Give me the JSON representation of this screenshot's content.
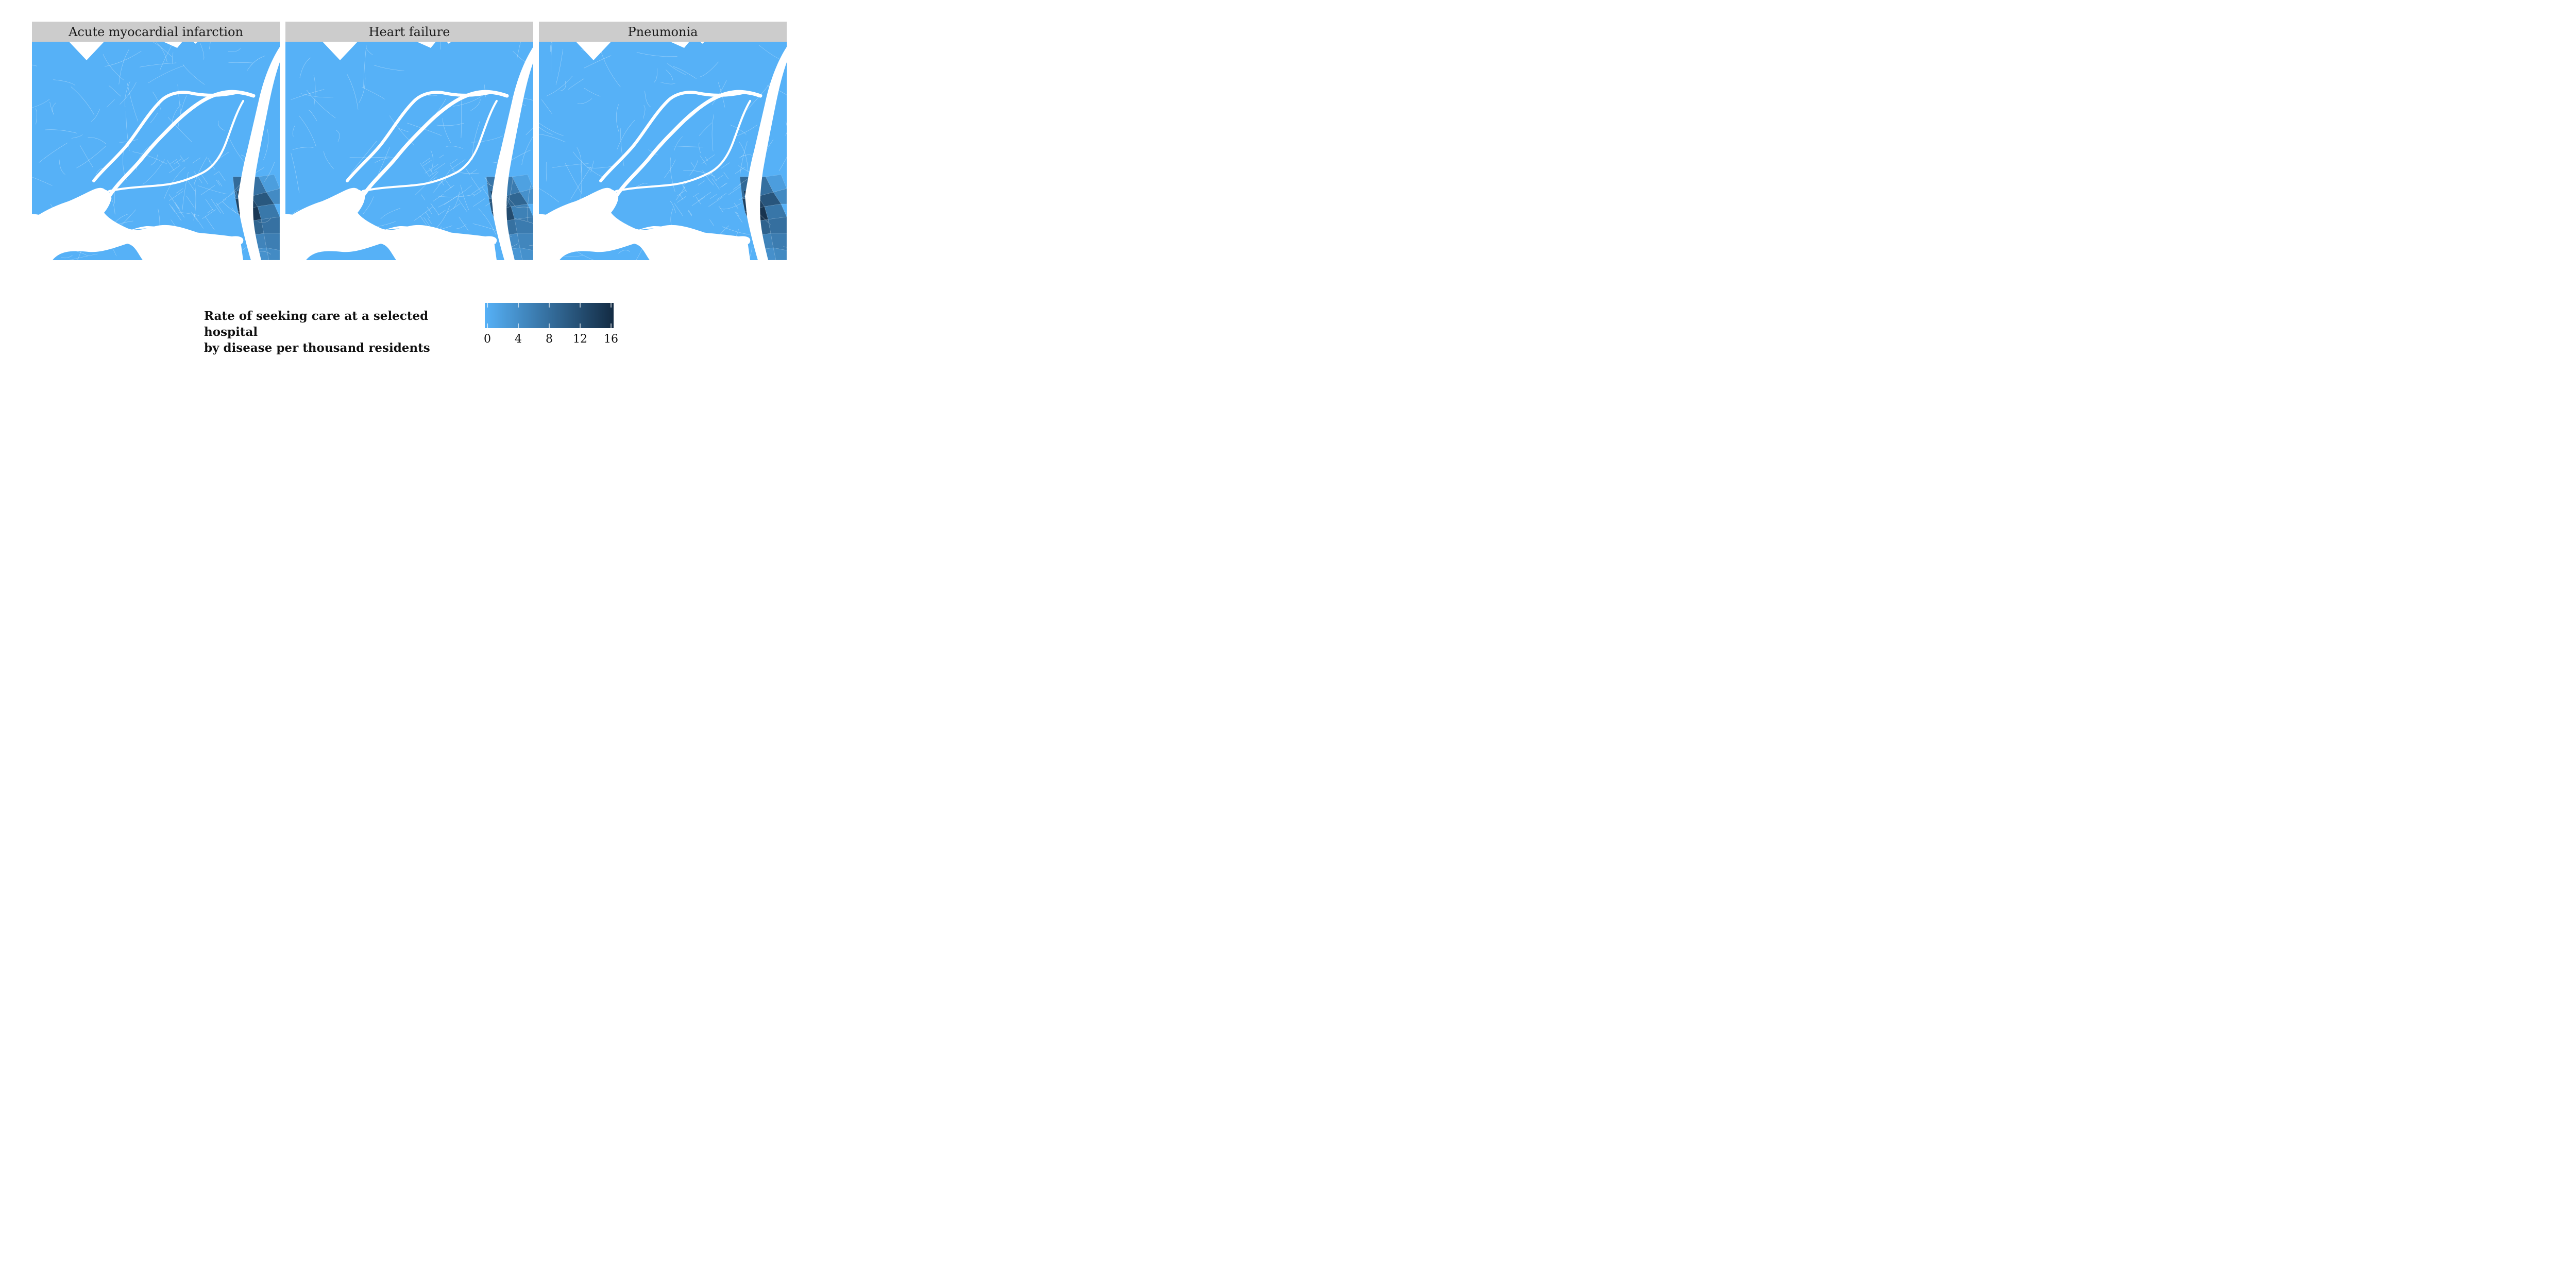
{
  "facets": [
    {
      "title": "Acute myocardial infarction",
      "hotspot": 0.95
    },
    {
      "title": "Heart failure",
      "hotspot": 0.8
    },
    {
      "title": "Pneumonia",
      "hotspot": 0.98
    }
  ],
  "legend": {
    "title_line1": "Rate of seeking care at a selected hospital",
    "title_line2": "by disease per thousand residents",
    "ticks": [
      "0",
      "4",
      "8",
      "12",
      "16"
    ],
    "min": 0,
    "max": 16,
    "color_low": "#56b1f7",
    "color_high": "#132b43"
  },
  "colors": {
    "land": "#56b1f7",
    "water": "#ffffff",
    "strip": "#cccccc"
  }
}
